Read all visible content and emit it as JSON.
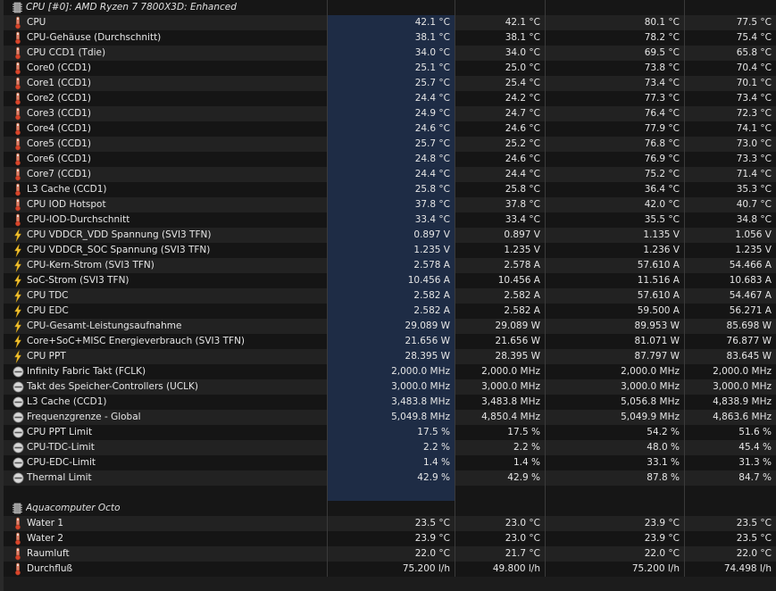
{
  "columns": [
    "",
    "",
    "",
    ""
  ],
  "groups": [
    {
      "title": "CPU [#0]: AMD Ryzen 7 7800X3D: Enhanced",
      "rows": [
        {
          "name": "CPU",
          "icon": "thermometer-icon",
          "values": [
            "42.1 °C",
            "42.1 °C",
            "80.1 °C",
            "77.5 °C"
          ]
        },
        {
          "name": "CPU-Gehäuse (Durchschnitt)",
          "icon": "thermometer-icon",
          "values": [
            "38.1 °C",
            "38.1 °C",
            "78.2 °C",
            "75.4 °C"
          ]
        },
        {
          "name": "CPU CCD1 (Tdie)",
          "icon": "thermometer-icon",
          "values": [
            "34.0 °C",
            "34.0 °C",
            "69.5 °C",
            "65.8 °C"
          ]
        },
        {
          "name": "Core0 (CCD1)",
          "icon": "thermometer-icon",
          "values": [
            "25.1 °C",
            "25.0 °C",
            "73.8 °C",
            "70.4 °C"
          ]
        },
        {
          "name": "Core1 (CCD1)",
          "icon": "thermometer-icon",
          "values": [
            "25.7 °C",
            "25.4 °C",
            "73.4 °C",
            "70.1 °C"
          ]
        },
        {
          "name": "Core2 (CCD1)",
          "icon": "thermometer-icon",
          "values": [
            "24.4 °C",
            "24.2 °C",
            "77.3 °C",
            "73.4 °C"
          ]
        },
        {
          "name": "Core3 (CCD1)",
          "icon": "thermometer-icon",
          "values": [
            "24.9 °C",
            "24.7 °C",
            "76.4 °C",
            "72.3 °C"
          ]
        },
        {
          "name": "Core4 (CCD1)",
          "icon": "thermometer-icon",
          "values": [
            "24.6 °C",
            "24.6 °C",
            "77.9 °C",
            "74.1 °C"
          ]
        },
        {
          "name": "Core5 (CCD1)",
          "icon": "thermometer-icon",
          "values": [
            "25.7 °C",
            "25.2 °C",
            "76.8 °C",
            "73.0 °C"
          ]
        },
        {
          "name": "Core6 (CCD1)",
          "icon": "thermometer-icon",
          "values": [
            "24.8 °C",
            "24.6 °C",
            "76.9 °C",
            "73.3 °C"
          ]
        },
        {
          "name": "Core7 (CCD1)",
          "icon": "thermometer-icon",
          "values": [
            "24.4 °C",
            "24.4 °C",
            "75.2 °C",
            "71.4 °C"
          ]
        },
        {
          "name": "L3 Cache (CCD1)",
          "icon": "thermometer-icon",
          "values": [
            "25.8 °C",
            "25.8 °C",
            "36.4 °C",
            "35.3 °C"
          ]
        },
        {
          "name": "CPU IOD Hotspot",
          "icon": "thermometer-icon",
          "values": [
            "37.8 °C",
            "37.8 °C",
            "42.0 °C",
            "40.7 °C"
          ]
        },
        {
          "name": "CPU-IOD-Durchschnitt",
          "icon": "thermometer-icon",
          "values": [
            "33.4 °C",
            "33.4 °C",
            "35.5 °C",
            "34.8 °C"
          ]
        },
        {
          "name": "CPU VDDCR_VDD Spannung (SVI3 TFN)",
          "icon": "lightning-icon",
          "values": [
            "0.897 V",
            "0.897 V",
            "1.135 V",
            "1.056 V"
          ]
        },
        {
          "name": "CPU VDDCR_SOC Spannung (SVI3 TFN)",
          "icon": "lightning-icon",
          "values": [
            "1.235 V",
            "1.235 V",
            "1.236 V",
            "1.235 V"
          ]
        },
        {
          "name": "CPU-Kern-Strom (SVI3 TFN)",
          "icon": "lightning-icon",
          "values": [
            "2.578 A",
            "2.578 A",
            "57.610 A",
            "54.466 A"
          ]
        },
        {
          "name": "SoC-Strom (SVI3 TFN)",
          "icon": "lightning-icon",
          "values": [
            "10.456 A",
            "10.456 A",
            "11.516 A",
            "10.683 A"
          ]
        },
        {
          "name": "CPU TDC",
          "icon": "lightning-icon",
          "values": [
            "2.582 A",
            "2.582 A",
            "57.610 A",
            "54.467 A"
          ]
        },
        {
          "name": "CPU EDC",
          "icon": "lightning-icon",
          "values": [
            "2.582 A",
            "2.582 A",
            "59.500 A",
            "56.271 A"
          ]
        },
        {
          "name": "CPU-Gesamt-Leistungsaufnahme",
          "icon": "lightning-icon",
          "values": [
            "29.089 W",
            "29.089 W",
            "89.953 W",
            "85.698 W"
          ]
        },
        {
          "name": "Core+SoC+MISC Energieverbrauch (SVI3 TFN)",
          "icon": "lightning-icon",
          "values": [
            "21.656 W",
            "21.656 W",
            "81.071 W",
            "76.877 W"
          ]
        },
        {
          "name": "CPU PPT",
          "icon": "lightning-icon",
          "values": [
            "28.395 W",
            "28.395 W",
            "87.797 W",
            "83.645 W"
          ]
        },
        {
          "name": "Infinity Fabric Takt (FCLK)",
          "icon": "clock-icon",
          "values": [
            "2,000.0 MHz",
            "2,000.0 MHz",
            "2,000.0 MHz",
            "2,000.0 MHz"
          ]
        },
        {
          "name": "Takt des Speicher-Controllers (UCLK)",
          "icon": "clock-icon",
          "values": [
            "3,000.0 MHz",
            "3,000.0 MHz",
            "3,000.0 MHz",
            "3,000.0 MHz"
          ]
        },
        {
          "name": "L3 Cache (CCD1)",
          "icon": "clock-icon",
          "values": [
            "3,483.8 MHz",
            "3,483.8 MHz",
            "5,056.8 MHz",
            "4,838.9 MHz"
          ]
        },
        {
          "name": "Frequenzgrenze - Global",
          "icon": "clock-icon",
          "values": [
            "5,049.8 MHz",
            "4,850.4 MHz",
            "5,049.9 MHz",
            "4,863.6 MHz"
          ]
        },
        {
          "name": "CPU PPT Limit",
          "icon": "gauge-icon",
          "values": [
            "17.5 %",
            "17.5 %",
            "54.2 %",
            "51.6 %"
          ]
        },
        {
          "name": "CPU-TDC-Limit",
          "icon": "gauge-icon",
          "values": [
            "2.2 %",
            "2.2 %",
            "48.0 %",
            "45.4 %"
          ]
        },
        {
          "name": "CPU-EDC-Limit",
          "icon": "gauge-icon",
          "values": [
            "1.4 %",
            "1.4 %",
            "33.1 %",
            "31.3 %"
          ]
        },
        {
          "name": "Thermal Limit",
          "icon": "gauge-icon",
          "values": [
            "42.9 %",
            "42.9 %",
            "87.8 %",
            "84.7 %"
          ]
        }
      ]
    },
    {
      "title": "Aquacomputer Octo",
      "rows": [
        {
          "name": "Water 1",
          "icon": "thermometer-icon",
          "values": [
            "23.5 °C",
            "23.0 °C",
            "23.9 °C",
            "23.5 °C"
          ]
        },
        {
          "name": "Water 2",
          "icon": "thermometer-icon",
          "values": [
            "23.9 °C",
            "23.0 °C",
            "23.9 °C",
            "23.5 °C"
          ]
        },
        {
          "name": "Raumluft",
          "icon": "thermometer-icon",
          "values": [
            "22.0 °C",
            "21.7 °C",
            "22.0 °C",
            "22.0 °C"
          ]
        },
        {
          "name": "Durchfluß",
          "icon": "flow-icon",
          "values": [
            "75.200 l/h",
            "49.800 l/h",
            "75.200 l/h",
            "74.498 l/h"
          ]
        }
      ]
    }
  ],
  "colors": {
    "selected_column": "#1e2c45",
    "thermometer": "#e07a5f",
    "lightning": "#f2c230"
  }
}
